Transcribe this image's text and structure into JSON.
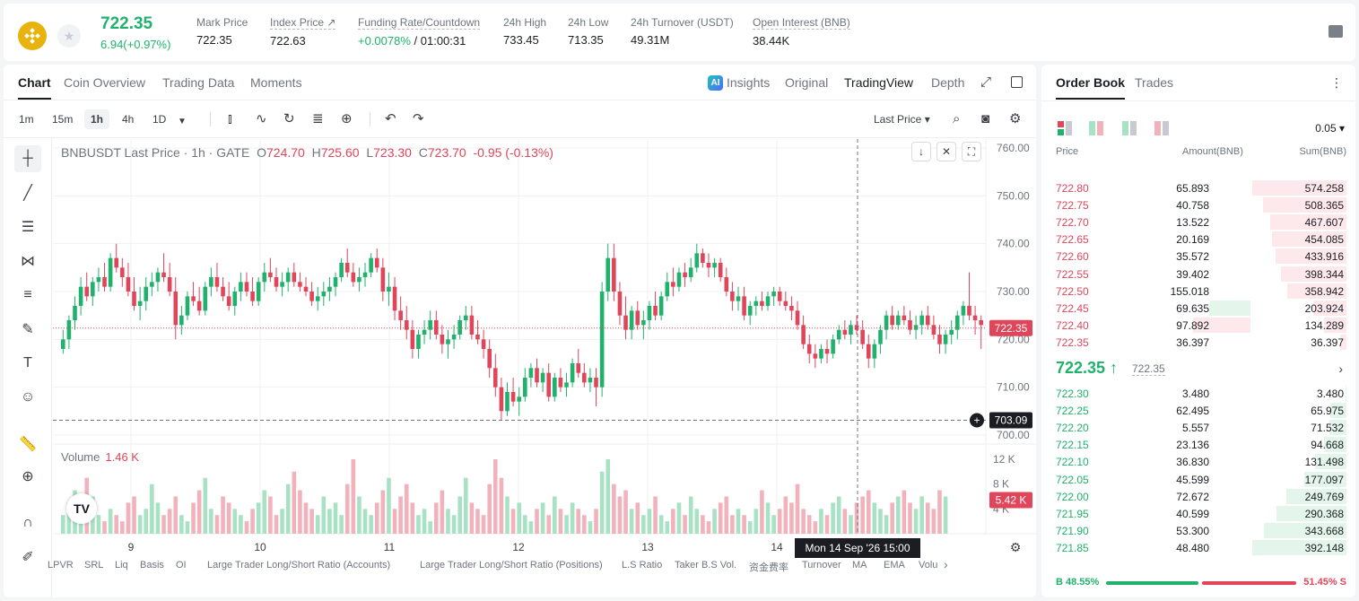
{
  "header": {
    "last_price": "722.35",
    "change": "6.94(+0.97%)",
    "stats": [
      {
        "label": "Mark Price",
        "value": "722.35"
      },
      {
        "label": "Index Price ↗",
        "value": "722.63"
      },
      {
        "label": "Funding Rate/Countdown",
        "value_pos": "+0.0078%",
        "value": " / 01:00:31"
      },
      {
        "label": "24h High",
        "value": "733.45"
      },
      {
        "label": "24h Low",
        "value": "713.35"
      },
      {
        "label": "24h Turnover (USDT)",
        "value": "49.31M"
      },
      {
        "label": "Open Interest (BNB)",
        "value": "38.44K"
      }
    ]
  },
  "tabs": [
    "Chart",
    "Coin Overview",
    "Trading Data",
    "Moments"
  ],
  "views": {
    "ai": "AI",
    "insights": "Insights",
    "original": "Original",
    "tradingview": "TradingView",
    "depth": "Depth"
  },
  "timeframes": [
    "1m",
    "15m",
    "1h",
    "4h",
    "1D"
  ],
  "last_price_select": "Last Price ▾",
  "legend": {
    "symbol": "BNBUSDT Last Price · 1h · GATE",
    "o_label": "O",
    "o": "724.70",
    "h_label": "H",
    "h": "725.60",
    "l_label": "L",
    "l": "723.30",
    "c_label": "C",
    "c": "723.70",
    "chg": "-0.95 (-0.13%)"
  },
  "volume_legend": {
    "label": "Volume",
    "value": "1.46 K"
  },
  "price_axis": [
    "760.00",
    "750.00",
    "740.00",
    "730.00",
    "720.00",
    "710.00",
    "700.00"
  ],
  "volume_axis": [
    "12 K",
    "8 K",
    "4 K"
  ],
  "current_price_tag": "722.35",
  "crosshair_price_tag": "703.09",
  "volume_tag": "5.42 K",
  "date_axis": [
    "9",
    "10",
    "11",
    "12",
    "13",
    "14"
  ],
  "crosshair_time": "Mon 14 Sep '26   15:00",
  "tv_logo": "TV",
  "indicators": [
    "LPVR",
    "SRL",
    "Liq",
    "Basis",
    "OI",
    "Large Trader Long/Short Ratio (Accounts)",
    "Large Trader Long/Short Ratio (Positions)",
    "L.S Ratio",
    "Taker B.S Vol.",
    "资金费率",
    "Turnover",
    "MA",
    "EMA",
    "Volu"
  ],
  "chart_data": {
    "type": "candlestick",
    "ylim": [
      700,
      760
    ],
    "candles": [
      [
        718,
        722,
        717,
        720
      ],
      [
        720,
        725,
        718,
        724
      ],
      [
        724,
        729,
        722,
        727
      ],
      [
        727,
        733,
        725,
        731
      ],
      [
        731,
        734,
        728,
        729
      ],
      [
        729,
        733,
        727,
        732
      ],
      [
        732,
        735,
        730,
        733
      ],
      [
        733,
        736,
        730,
        731
      ],
      [
        731,
        738,
        730,
        737
      ],
      [
        737,
        740,
        734,
        735
      ],
      [
        735,
        737,
        731,
        733
      ],
      [
        733,
        736,
        729,
        730
      ],
      [
        730,
        733,
        726,
        727
      ],
      [
        727,
        731,
        724,
        728
      ],
      [
        728,
        733,
        726,
        731
      ],
      [
        731,
        734,
        729,
        732
      ],
      [
        732,
        735,
        730,
        734
      ],
      [
        734,
        738,
        732,
        733
      ],
      [
        733,
        736,
        729,
        730
      ],
      [
        730,
        733,
        720,
        723
      ],
      [
        723,
        727,
        721,
        725
      ],
      [
        725,
        730,
        724,
        729
      ],
      [
        729,
        732,
        727,
        728
      ],
      [
        728,
        731,
        725,
        726
      ],
      [
        726,
        732,
        725,
        731
      ],
      [
        731,
        735,
        729,
        733
      ],
      [
        733,
        736,
        730,
        731
      ],
      [
        731,
        733,
        728,
        729
      ],
      [
        729,
        732,
        726,
        727
      ],
      [
        727,
        731,
        725,
        730
      ],
      [
        730,
        734,
        728,
        732
      ],
      [
        732,
        734,
        729,
        730
      ],
      [
        730,
        733,
        727,
        728
      ],
      [
        728,
        733,
        727,
        732
      ],
      [
        732,
        736,
        730,
        734
      ],
      [
        734,
        737,
        732,
        733
      ],
      [
        733,
        735,
        730,
        731
      ],
      [
        731,
        734,
        729,
        732
      ],
      [
        732,
        735,
        730,
        734
      ],
      [
        734,
        736,
        731,
        732
      ],
      [
        732,
        734,
        730,
        731
      ],
      [
        731,
        733,
        729,
        730
      ],
      [
        730,
        732,
        727,
        728
      ],
      [
        728,
        731,
        726,
        729
      ],
      [
        729,
        732,
        727,
        730
      ],
      [
        730,
        733,
        728,
        731
      ],
      [
        731,
        734,
        729,
        733
      ],
      [
        733,
        737,
        732,
        736
      ],
      [
        736,
        739,
        733,
        734
      ],
      [
        734,
        736,
        731,
        732
      ],
      [
        732,
        735,
        730,
        733
      ],
      [
        733,
        736,
        731,
        734
      ],
      [
        734,
        738,
        733,
        737
      ],
      [
        737,
        739,
        734,
        735
      ],
      [
        735,
        737,
        728,
        730
      ],
      [
        730,
        734,
        727,
        731
      ],
      [
        731,
        733,
        724,
        726
      ],
      [
        726,
        729,
        722,
        724
      ],
      [
        724,
        727,
        720,
        722
      ],
      [
        722,
        724,
        716,
        718
      ],
      [
        718,
        722,
        716,
        721
      ],
      [
        721,
        724,
        719,
        722
      ],
      [
        722,
        726,
        720,
        724
      ],
      [
        724,
        726,
        720,
        721
      ],
      [
        721,
        723,
        717,
        719
      ],
      [
        719,
        722,
        716,
        720
      ],
      [
        720,
        723,
        718,
        721
      ],
      [
        721,
        725,
        720,
        724
      ],
      [
        724,
        727,
        722,
        725
      ],
      [
        725,
        727,
        720,
        721
      ],
      [
        721,
        724,
        719,
        720
      ],
      [
        720,
        722,
        716,
        718
      ],
      [
        718,
        720,
        712,
        714
      ],
      [
        714,
        717,
        708,
        710
      ],
      [
        710,
        712,
        703,
        705
      ],
      [
        705,
        711,
        704,
        709
      ],
      [
        709,
        712,
        706,
        707
      ],
      [
        707,
        710,
        704,
        708
      ],
      [
        708,
        714,
        707,
        712
      ],
      [
        712,
        715,
        710,
        714
      ],
      [
        714,
        716,
        710,
        711
      ],
      [
        711,
        714,
        709,
        713
      ],
      [
        713,
        715,
        707,
        708
      ],
      [
        708,
        713,
        707,
        712
      ],
      [
        712,
        714,
        709,
        710
      ],
      [
        710,
        713,
        708,
        711
      ],
      [
        711,
        716,
        710,
        715
      ],
      [
        715,
        718,
        712,
        713
      ],
      [
        713,
        715,
        710,
        711
      ],
      [
        711,
        714,
        709,
        712
      ],
      [
        712,
        714,
        706,
        710
      ],
      [
        710,
        732,
        708,
        730
      ],
      [
        730,
        740,
        728,
        737
      ],
      [
        737,
        740,
        728,
        730
      ],
      [
        730,
        732,
        723,
        725
      ],
      [
        725,
        729,
        720,
        722
      ],
      [
        722,
        727,
        720,
        726
      ],
      [
        726,
        728,
        722,
        723
      ],
      [
        723,
        726,
        720,
        724
      ],
      [
        724,
        728,
        722,
        727
      ],
      [
        727,
        730,
        724,
        725
      ],
      [
        725,
        730,
        724,
        729
      ],
      [
        729,
        734,
        728,
        732
      ],
      [
        732,
        735,
        729,
        731
      ],
      [
        731,
        735,
        730,
        734
      ],
      [
        734,
        736,
        731,
        733
      ],
      [
        733,
        737,
        732,
        735
      ],
      [
        735,
        740,
        734,
        738
      ],
      [
        738,
        739,
        735,
        736
      ],
      [
        736,
        738,
        733,
        735
      ],
      [
        735,
        737,
        733,
        736
      ],
      [
        736,
        737,
        732,
        733
      ],
      [
        733,
        735,
        729,
        730
      ],
      [
        730,
        732,
        726,
        728
      ],
      [
        728,
        731,
        726,
        729
      ],
      [
        729,
        731,
        724,
        725
      ],
      [
        725,
        728,
        723,
        727
      ],
      [
        727,
        729,
        725,
        728
      ],
      [
        728,
        730,
        726,
        727
      ],
      [
        727,
        730,
        726,
        729
      ],
      [
        729,
        731,
        727,
        730
      ],
      [
        730,
        731,
        727,
        728
      ],
      [
        728,
        730,
        726,
        727
      ],
      [
        727,
        729,
        724,
        726
      ],
      [
        726,
        728,
        722,
        723
      ],
      [
        723,
        725,
        718,
        719
      ],
      [
        719,
        721,
        715,
        717
      ],
      [
        717,
        719,
        714,
        716
      ],
      [
        716,
        719,
        715,
        718
      ],
      [
        718,
        720,
        715,
        717
      ],
      [
        717,
        721,
        716,
        720
      ],
      [
        720,
        723,
        719,
        722
      ],
      [
        722,
        724,
        720,
        721
      ],
      [
        721,
        724,
        719,
        723
      ],
      [
        723,
        725,
        721,
        722
      ],
      [
        722,
        724,
        718,
        719
      ],
      [
        719,
        721,
        714,
        716
      ],
      [
        716,
        720,
        714,
        719
      ],
      [
        719,
        723,
        717,
        722
      ],
      [
        722,
        726,
        720,
        725
      ],
      [
        725,
        727,
        722,
        723
      ],
      [
        723,
        726,
        722,
        725
      ],
      [
        725,
        727,
        723,
        724
      ],
      [
        724,
        726,
        721,
        722
      ],
      [
        722,
        725,
        720,
        723
      ],
      [
        723,
        726,
        721,
        725
      ],
      [
        725,
        727,
        722,
        723
      ],
      [
        723,
        725,
        720,
        721
      ],
      [
        721,
        723,
        717,
        719
      ],
      [
        719,
        722,
        717,
        721
      ],
      [
        721,
        724,
        719,
        722
      ],
      [
        722,
        726,
        720,
        725
      ],
      [
        725,
        728,
        723,
        727
      ],
      [
        727,
        734,
        724,
        725
      ],
      [
        725,
        727,
        721,
        724
      ],
      [
        724,
        725,
        718,
        723
      ]
    ],
    "volume": [
      3,
      5,
      7,
      4,
      9,
      6,
      3,
      2,
      4,
      3,
      2,
      5,
      6,
      3,
      4,
      8,
      5,
      3,
      4,
      6,
      3,
      2,
      5,
      7,
      9,
      4,
      3,
      6,
      5,
      4,
      3,
      2,
      4,
      5,
      7,
      6,
      3,
      4,
      8,
      10,
      7,
      5,
      4,
      3,
      6,
      4,
      5,
      3,
      8,
      12,
      6,
      4,
      3,
      5,
      7,
      9,
      4,
      6,
      8,
      5,
      3,
      4,
      2,
      5,
      7,
      4,
      3,
      6,
      9,
      5,
      4,
      3,
      8,
      12,
      9,
      6,
      4,
      5,
      3,
      2,
      4,
      5,
      3,
      6,
      4,
      3,
      5,
      4,
      3,
      2,
      4,
      10,
      12,
      8,
      6,
      7,
      4,
      5,
      3,
      4,
      6,
      3,
      2,
      4,
      5,
      3,
      6,
      4,
      3,
      2,
      4,
      5,
      6,
      3,
      4,
      3,
      2,
      4,
      7,
      5,
      3,
      4,
      6,
      5,
      8,
      4,
      3,
      2,
      4,
      3,
      5,
      6,
      4,
      3,
      5,
      6,
      7,
      5,
      4,
      3,
      5,
      6,
      7,
      5,
      4,
      6,
      5,
      4,
      7,
      6
    ],
    "series": [
      {
        "name": "Volume",
        "values_ref": "volume"
      }
    ]
  },
  "book": {
    "tabs": [
      "Order Book",
      "Trades"
    ],
    "precision": "0.05 ▾",
    "columns": [
      "Price",
      "Amount(BNB)",
      "Sum(BNB)"
    ],
    "asks": [
      [
        "722.80",
        "65.893",
        "574.258"
      ],
      [
        "722.75",
        "40.758",
        "508.365"
      ],
      [
        "722.70",
        "13.522",
        "467.607"
      ],
      [
        "722.65",
        "20.169",
        "454.085"
      ],
      [
        "722.60",
        "35.572",
        "433.916"
      ],
      [
        "722.55",
        "39.402",
        "398.344"
      ],
      [
        "722.50",
        "155.018",
        "358.942"
      ],
      [
        "722.45",
        "69.635",
        "203.924"
      ],
      [
        "722.40",
        "97.892",
        "134.289"
      ],
      [
        "722.35",
        "36.397",
        "36.397"
      ]
    ],
    "mid_price": "722.35 ↑",
    "mid_ref": "722.35",
    "bids": [
      [
        "722.30",
        "3.480",
        "3.480"
      ],
      [
        "722.25",
        "62.495",
        "65.975"
      ],
      [
        "722.20",
        "5.557",
        "71.532"
      ],
      [
        "722.15",
        "23.136",
        "94.668"
      ],
      [
        "722.10",
        "36.830",
        "131.498"
      ],
      [
        "722.05",
        "45.599",
        "177.097"
      ],
      [
        "722.00",
        "72.672",
        "249.769"
      ],
      [
        "721.95",
        "40.599",
        "290.368"
      ],
      [
        "721.90",
        "53.300",
        "343.668"
      ],
      [
        "721.85",
        "48.480",
        "392.148"
      ]
    ],
    "buy_ratio": "B 48.55%",
    "sell_ratio": "51.45% S",
    "buy_fraction": 0.4855
  },
  "colors": {
    "up": "#20b26c",
    "down": "#e0455a"
  }
}
